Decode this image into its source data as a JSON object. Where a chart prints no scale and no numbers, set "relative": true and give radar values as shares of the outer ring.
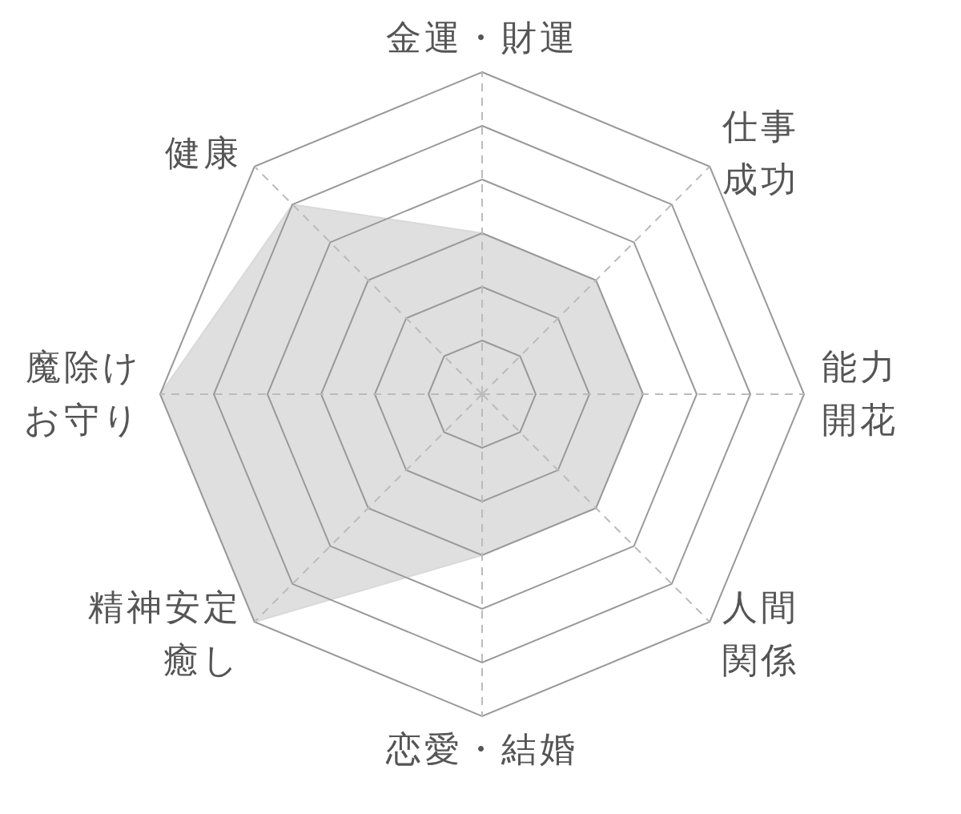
{
  "chart_data": {
    "type": "radar",
    "relative": true,
    "grid": true,
    "categories": [
      "金運・財運",
      "仕事成功",
      "能力開花",
      "人間関係",
      "恋愛・結婚",
      "精神安定癒し",
      "魔除けお守り",
      "健康"
    ],
    "series": [
      {
        "color": "#d9d9d9",
        "values": [
          0.5,
          0.5,
          0.5,
          0.5,
          0.5,
          1,
          1,
          0.833
        ]
      }
    ]
  }
}
